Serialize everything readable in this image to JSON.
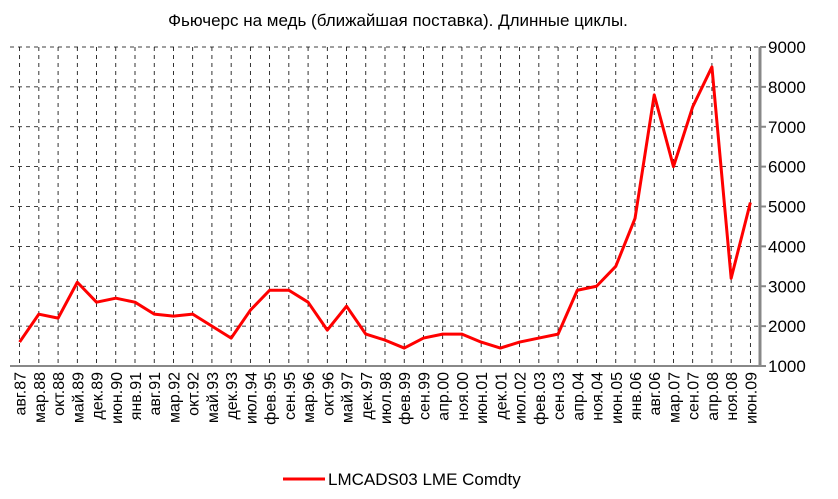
{
  "chart_data": {
    "type": "line",
    "title": "Фьючерс на медь (ближайшая поставка). Длинные циклы.",
    "categories": [
      "авг.87",
      "мар.88",
      "окт.88",
      "май.89",
      "дек.89",
      "июн.90",
      "янв.91",
      "авг.91",
      "мар.92",
      "окт.92",
      "май.93",
      "дек.93",
      "июл.94",
      "фев.95",
      "сен.95",
      "мар.96",
      "окт.96",
      "май.97",
      "дек.97",
      "июл.98",
      "фев.99",
      "сен.99",
      "апр.00",
      "ноя.00",
      "июн.01",
      "дек.01",
      "июл.02",
      "фев.03",
      "сен.03",
      "апр.04",
      "ноя.04",
      "июн.05",
      "янв.06",
      "авг.06",
      "мар.07",
      "сен.07",
      "апр.08",
      "ноя.08",
      "июн.09"
    ],
    "series": [
      {
        "name": "LMCADS03 LME Comdty",
        "color": "#ff0000",
        "values": [
          1600,
          2300,
          2200,
          3100,
          2600,
          2700,
          2600,
          2300,
          2250,
          2300,
          2000,
          1700,
          2400,
          2900,
          2900,
          2600,
          1900,
          2500,
          1800,
          1650,
          1450,
          1700,
          1800,
          1800,
          1600,
          1450,
          1600,
          1700,
          1800,
          2900,
          3000,
          3500,
          4700,
          7800,
          6000,
          7500,
          8500,
          3200,
          5100
        ]
      }
    ],
    "ylim": [
      1000,
      9000
    ],
    "yticks": [
      1000,
      2000,
      3000,
      4000,
      5000,
      6000,
      7000,
      8000,
      9000
    ],
    "grid": true,
    "legend": "bottom"
  }
}
